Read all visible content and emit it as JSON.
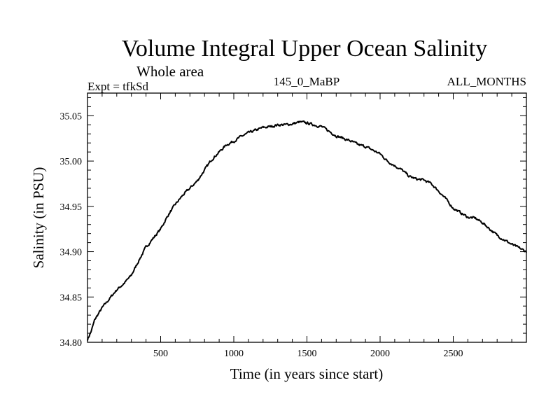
{
  "chart_data": {
    "type": "line",
    "title": "Volume Integral Upper Ocean Salinity",
    "subtitle": "Whole area",
    "experiment": "Expt = tfkSd",
    "run_label": "145_0_MaBP",
    "months_label": "ALL_MONTHS",
    "xlabel": "Time (in years since start)",
    "ylabel": "Salinity (in PSU)",
    "xlim": [
      0,
      3000
    ],
    "ylim": [
      34.8,
      35.075
    ],
    "xticks": [
      500,
      1000,
      1500,
      2000,
      2500
    ],
    "xtick_labels": [
      "500",
      "1000",
      "1500",
      "2000",
      "2500"
    ],
    "yticks": [
      34.8,
      34.85,
      34.9,
      34.95,
      35.0,
      35.05
    ],
    "ytick_labels": [
      "34.80",
      "34.85",
      "34.90",
      "34.95",
      "35.00",
      "35.05"
    ],
    "grid": false,
    "series": [
      {
        "name": "Salinity",
        "x": [
          0,
          25,
          50,
          100,
          150,
          200,
          250,
          300,
          350,
          400,
          450,
          500,
          550,
          600,
          650,
          700,
          750,
          800,
          850,
          900,
          950,
          1000,
          1050,
          1100,
          1150,
          1200,
          1250,
          1300,
          1350,
          1400,
          1450,
          1500,
          1550,
          1600,
          1650,
          1700,
          1750,
          1800,
          1850,
          1900,
          1950,
          2000,
          2050,
          2100,
          2150,
          2200,
          2250,
          2300,
          2350,
          2400,
          2450,
          2500,
          2550,
          2600,
          2650,
          2700,
          2750,
          2800,
          2850,
          2900,
          2950,
          3000
        ],
        "values": [
          34.803,
          34.812,
          34.825,
          34.838,
          34.848,
          34.858,
          34.865,
          34.874,
          34.89,
          34.905,
          34.915,
          34.925,
          34.94,
          34.952,
          34.962,
          34.97,
          34.978,
          34.99,
          35.002,
          35.01,
          35.018,
          35.022,
          35.027,
          35.031,
          35.034,
          35.037,
          35.038,
          35.04,
          35.04,
          35.041,
          35.043,
          35.042,
          35.04,
          35.038,
          35.033,
          35.028,
          35.025,
          35.022,
          35.018,
          35.016,
          35.012,
          35.008,
          35.0,
          34.995,
          34.99,
          34.983,
          34.98,
          34.979,
          34.975,
          34.967,
          34.958,
          34.948,
          34.943,
          34.938,
          34.937,
          34.932,
          34.925,
          34.918,
          34.913,
          34.908,
          34.904,
          34.9
        ]
      }
    ]
  },
  "colors": {
    "line": "#000000",
    "frame": "#000000",
    "background": "#ffffff"
  }
}
